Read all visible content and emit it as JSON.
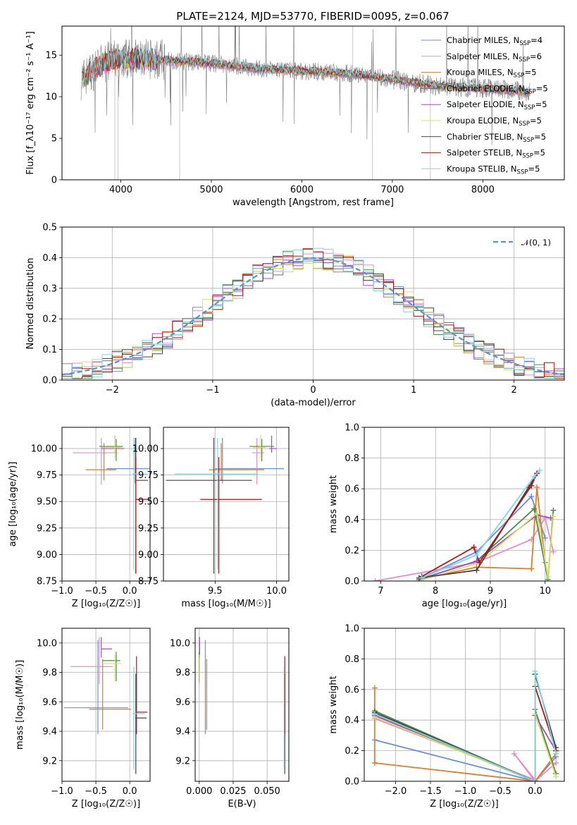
{
  "figure": {
    "title": "PLATE=2124, MJD=53770, FIBERID=0095, z=0.067"
  },
  "colors": {
    "c1": "#6a8fe0",
    "c2": "#e58fc6",
    "c3": "#e07b2a",
    "c4": "#4a8a4a",
    "c5": "#a64bc4",
    "c6": "#d7e06a",
    "c7": "#444444",
    "c8": "#b01515",
    "c9": "#7fd8e0",
    "data": "#808080",
    "normal": "#5b8fd6"
  },
  "chart_data": [
    {
      "id": "spectrum",
      "type": "line",
      "xlabel": "wavelength [Angstrom, rest frame]",
      "ylabel": "Flux [f_λ10⁻¹⁷ erg cm⁻² s⁻¹ A⁻¹]",
      "xlim": [
        3350,
        8900
      ],
      "ylim": [
        0,
        18.5
      ],
      "xticks": [
        4000,
        5000,
        6000,
        7000,
        8000
      ],
      "yticks": [
        0,
        5,
        10,
        15
      ],
      "grid": false,
      "legend_position": "top-right",
      "series": [
        {
          "name": "Chabrier MILES, N_SSP=4",
          "color": "c1"
        },
        {
          "name": "Salpeter MILES, N_SSP=6",
          "color": "c2"
        },
        {
          "name": "Kroupa MILES, N_SSP=5",
          "color": "c3"
        },
        {
          "name": "Chabrier ELODIE, N_SSP=5",
          "color": "c4"
        },
        {
          "name": "Salpeter ELODIE, N_SSP=5",
          "color": "c5"
        },
        {
          "name": "Kroupa ELODIE, N_SSP=5",
          "color": "c6"
        },
        {
          "name": "Chabrier STELIB, N_SSP=5",
          "color": "c7"
        },
        {
          "name": "Salpeter STELIB, N_SSP=5",
          "color": "c8"
        },
        {
          "name": "Kroupa STELIB, N_SSP=5",
          "color": "c9"
        }
      ],
      "continuum": {
        "x": [
          3550,
          3800,
          4000,
          4500,
          5000,
          5500,
          6000,
          6500,
          7000,
          7300,
          7500,
          8000,
          8500
        ],
        "y": [
          12,
          14,
          14.6,
          14.4,
          14.0,
          13.4,
          13.1,
          12.8,
          12.1,
          11.6,
          11.3,
          11.0,
          10.6
        ]
      }
    },
    {
      "id": "residuals",
      "type": "line",
      "xlabel": "(data-model)/error",
      "ylabel": "Normed distribution",
      "xlim": [
        -2.5,
        2.5
      ],
      "ylim": [
        0,
        0.5
      ],
      "xticks": [
        -2,
        -1,
        0,
        1,
        2
      ],
      "yticks": [
        0.0,
        0.1,
        0.2,
        0.3,
        0.4,
        0.5
      ],
      "grid": true,
      "legend": "𝒩(0, 1)",
      "legend_position": "top-right",
      "normal_curve": {
        "mean": 0,
        "sigma": 1
      }
    },
    {
      "id": "age-vs-Z",
      "type": "scatter",
      "xlabel": "Z [log₁₀(Z/Z☉)]",
      "ylabel": "age  [log₁₀(age/yr)]",
      "xlim": [
        -1.0,
        0.3
      ],
      "ylim": [
        8.75,
        10.2
      ],
      "xticks": [
        -1.0,
        -0.5,
        0.0
      ],
      "yticks": [
        8.75,
        9.0,
        9.25,
        9.5,
        9.75,
        10.0
      ],
      "points": [
        {
          "c": "c1",
          "x": 0.08,
          "y": 9.81,
          "xe": [
            0.42,
            0.3
          ],
          "ye": [
            0.14,
            0.29
          ]
        },
        {
          "c": "c2",
          "x": -0.42,
          "y": 9.96,
          "xe": [
            0.42,
            0.24
          ],
          "ye": [
            0.3,
            0.14
          ]
        },
        {
          "c": "c3",
          "x": -0.38,
          "y": 9.8,
          "xe": [
            0.27,
            0.18
          ],
          "ye": [
            0.1,
            0.25
          ]
        },
        {
          "c": "c4",
          "x": -0.2,
          "y": 10.02,
          "xe": [
            0.25,
            0.1
          ],
          "ye": [
            0.14,
            0.07
          ]
        },
        {
          "c": "c5",
          "x": -0.22,
          "y": 10.0,
          "xe": [
            0.2,
            0.14
          ],
          "ye": [
            0.04,
            0.12
          ]
        },
        {
          "c": "c6",
          "x": -0.22,
          "y": 10.01,
          "xe": [
            0.19,
            0.1
          ],
          "ye": [
            0.1,
            0.12
          ]
        },
        {
          "c": "c7",
          "x": 0.09,
          "y": 9.7,
          "xe": [
            0.0,
            0.18
          ],
          "ye": [
            0.88,
            0.4
          ]
        },
        {
          "c": "c8",
          "x": 0.09,
          "y": 9.52,
          "xe": [
            0.0,
            0.2
          ],
          "ye": [
            0.7,
            0.4
          ]
        },
        {
          "c": "c9",
          "x": 0.06,
          "y": 9.76,
          "xe": [
            0.02,
            0.2
          ],
          "ye": [
            0.9,
            0.34
          ]
        }
      ]
    },
    {
      "id": "age-vs-mass",
      "type": "scatter",
      "xlabel": "mass [log₁₀(M/M☉)]",
      "ylabel": "",
      "xlim": [
        9.08,
        10.1
      ],
      "ylim": [
        8.75,
        10.2
      ],
      "xticks": [
        9.5,
        10.0
      ],
      "yticks": [
        8.75,
        9.0,
        9.25,
        9.5,
        9.75,
        10.0
      ],
      "points": [
        {
          "c": "c1",
          "x": 9.56,
          "y": 9.81,
          "xe": [
            0.06,
            0.5
          ],
          "ye": [
            0.14,
            0.29
          ]
        },
        {
          "c": "c2",
          "x": 9.84,
          "y": 9.96,
          "xe": [
            0.04,
            0.06
          ],
          "ye": [
            0.3,
            0.14
          ]
        },
        {
          "c": "c3",
          "x": 9.55,
          "y": 9.8,
          "xe": [
            0.1,
            0.35
          ],
          "ye": [
            0.1,
            0.25
          ]
        },
        {
          "c": "c4",
          "x": 9.88,
          "y": 10.02,
          "xe": [
            0.1,
            0.1
          ],
          "ye": [
            0.14,
            0.07
          ]
        },
        {
          "c": "c5",
          "x": 9.96,
          "y": 10.0,
          "xe": [
            0.02,
            0.04
          ],
          "ye": [
            0.04,
            0.12
          ]
        },
        {
          "c": "c6",
          "x": 9.87,
          "y": 10.01,
          "xe": [
            0.06,
            0.04
          ],
          "ye": [
            0.1,
            0.12
          ]
        },
        {
          "c": "c7",
          "x": 9.49,
          "y": 9.7,
          "xe": [
            0.39,
            0.31
          ],
          "ye": [
            0.88,
            0.4
          ]
        },
        {
          "c": "c8",
          "x": 9.53,
          "y": 9.52,
          "xe": [
            0.15,
            0.35
          ],
          "ye": [
            0.7,
            0.4
          ]
        },
        {
          "c": "c9",
          "x": 9.52,
          "y": 9.76,
          "xe": [
            0.35,
            0.33
          ],
          "ye": [
            0.9,
            0.34
          ]
        }
      ]
    },
    {
      "id": "weight-vs-age",
      "type": "line",
      "xlabel": "age  [log₁₀(age/yr)]",
      "ylabel": "mass weight",
      "xlim": [
        6.7,
        10.35
      ],
      "ylim": [
        0,
        1.0
      ],
      "xticks": [
        7,
        8,
        9,
        10
      ],
      "yticks": [
        0.0,
        0.2,
        0.4,
        0.6,
        0.8,
        1.0
      ],
      "series": [
        {
          "c": "c1",
          "x": [
            7.75,
            8.75,
            9.75,
            10.0
          ],
          "y": [
            0.02,
            0.19,
            0.55,
            0.28
          ]
        },
        {
          "c": "c2",
          "x": [
            6.9,
            8.75,
            9.75,
            10.0,
            10.15
          ],
          "y": [
            0.0,
            0.12,
            0.27,
            0.41,
            0.19
          ]
        },
        {
          "c": "c3",
          "x": [
            7.7,
            8.75,
            9.75,
            9.85,
            10.0
          ],
          "y": [
            0.01,
            0.09,
            0.08,
            0.61,
            0.12
          ]
        },
        {
          "c": "c4",
          "x": [
            7.7,
            8.75,
            9.8,
            10.05,
            10.15
          ],
          "y": [
            0.01,
            0.13,
            0.47,
            0.01,
            0.46
          ]
        },
        {
          "c": "c5",
          "x": [
            7.7,
            8.75,
            9.85,
            10.1
          ],
          "y": [
            0.01,
            0.13,
            0.43,
            0.41
          ]
        },
        {
          "c": "c6",
          "x": [
            7.7,
            8.8,
            9.85,
            10.05,
            10.15
          ],
          "y": [
            0.0,
            0.12,
            0.44,
            0.03,
            0.42
          ]
        },
        {
          "c": "c7",
          "x": [
            7.7,
            8.75,
            9.7,
            9.85
          ],
          "y": [
            0.02,
            0.07,
            0.61,
            0.7
          ]
        },
        {
          "c": "c8",
          "x": [
            7.75,
            8.7,
            8.8,
            9.75,
            9.85
          ],
          "y": [
            0.03,
            0.22,
            0.12,
            0.62,
            0.7
          ]
        },
        {
          "c": "c9",
          "x": [
            7.75,
            8.75,
            9.8,
            9.9
          ],
          "y": [
            0.02,
            0.17,
            0.68,
            0.72
          ]
        }
      ]
    },
    {
      "id": "mass-vs-Z",
      "type": "scatter",
      "xlabel": "Z [log₁₀(Z/Z☉)]",
      "ylabel": "mass [log₁₀(M/M☉)]",
      "xlim": [
        -1.0,
        0.3
      ],
      "ylim": [
        9.06,
        10.1
      ],
      "xticks": [
        -1.0,
        -0.5,
        0.0
      ],
      "yticks": [
        9.2,
        9.4,
        9.6,
        9.8,
        10.0
      ],
      "points": [
        {
          "c": "c1",
          "x": -0.47,
          "y": 9.56,
          "xe": [
            0.5,
            0.45
          ],
          "ye": [
            0.18,
            0.46
          ]
        },
        {
          "c": "c2",
          "x": -0.45,
          "y": 9.84,
          "xe": [
            0.42,
            0.2
          ],
          "ye": [
            0.12,
            0.2
          ]
        },
        {
          "c": "c3",
          "x": -0.4,
          "y": 9.55,
          "xe": [
            0.2,
            0.42
          ],
          "ye": [
            0.14,
            0.34
          ]
        },
        {
          "c": "c4",
          "x": -0.2,
          "y": 9.88,
          "xe": [
            0.2,
            0.06
          ],
          "ye": [
            0.14,
            0.06
          ]
        },
        {
          "c": "c5",
          "x": -0.42,
          "y": 9.96,
          "xe": [
            0.0,
            0.16
          ],
          "ye": [
            0.06,
            0.08
          ]
        },
        {
          "c": "c6",
          "x": -0.22,
          "y": 9.86,
          "xe": [
            0.18,
            0.1
          ],
          "ye": [
            0.12,
            0.06
          ]
        },
        {
          "c": "c7",
          "x": 0.09,
          "y": 9.49,
          "xe": [
            0.01,
            0.16
          ],
          "ye": [
            0.38,
            0.3
          ]
        },
        {
          "c": "c8",
          "x": 0.1,
          "y": 9.53,
          "xe": [
            0.0,
            0.16
          ],
          "ye": [
            0.15,
            0.38
          ]
        },
        {
          "c": "c9",
          "x": 0.06,
          "y": 9.52,
          "xe": [
            0.02,
            0.16
          ],
          "ye": [
            0.38,
            0.32
          ]
        }
      ]
    },
    {
      "id": "mass-vs-EBV",
      "type": "scatter",
      "xlabel": "E(B-V)",
      "ylabel": "",
      "xlim": [
        -0.003,
        0.066
      ],
      "ylim": [
        9.06,
        10.1
      ],
      "xticks": [
        0.0,
        0.025,
        0.05
      ],
      "tick_labels": [
        "0.000",
        "0.025",
        "0.050"
      ],
      "yticks": [
        9.2,
        9.4,
        9.6,
        9.8,
        10.0
      ],
      "points": [
        {
          "c": "c1",
          "x": 0.0045,
          "y": 9.56,
          "xe": [
            0,
            0
          ],
          "ye": [
            0.18,
            0.46
          ]
        },
        {
          "c": "c2",
          "x": 0.0,
          "y": 9.84,
          "xe": [
            0,
            0
          ],
          "ye": [
            0.12,
            0.2
          ]
        },
        {
          "c": "c3",
          "x": 0.0055,
          "y": 9.55,
          "xe": [
            0,
            0
          ],
          "ye": [
            0.14,
            0.34
          ]
        },
        {
          "c": "c4",
          "x": 0.0,
          "y": 9.88,
          "xe": [
            0,
            0
          ],
          "ye": [
            0.14,
            0.06
          ]
        },
        {
          "c": "c5",
          "x": 0.0003,
          "y": 9.96,
          "xe": [
            0,
            0
          ],
          "ye": [
            0.06,
            0.08
          ]
        },
        {
          "c": "c6",
          "x": 0.0002,
          "y": 9.86,
          "xe": [
            0,
            0
          ],
          "ye": [
            0.12,
            0.06
          ]
        },
        {
          "c": "c7",
          "x": 0.063,
          "y": 9.49,
          "xe": [
            0,
            0
          ],
          "ye": [
            0.38,
            0.3
          ]
        },
        {
          "c": "c8",
          "x": 0.063,
          "y": 9.53,
          "xe": [
            0,
            0
          ],
          "ye": [
            0.15,
            0.38
          ]
        },
        {
          "c": "c9",
          "x": 0.0625,
          "y": 9.52,
          "xe": [
            0,
            0
          ],
          "ye": [
            0.38,
            0.32
          ]
        }
      ]
    },
    {
      "id": "weight-vs-Z",
      "type": "line",
      "xlabel": "Z [log₁₀(Z/Z☉)]",
      "ylabel": "mass weight",
      "xlim": [
        -2.45,
        0.42
      ],
      "ylim": [
        0,
        1.0
      ],
      "xticks": [
        -2.0,
        -1.5,
        -1.0,
        -0.5,
        0.0
      ],
      "yticks": [
        0.0,
        0.2,
        0.4,
        0.6,
        0.8,
        1.0
      ],
      "series": [
        {
          "c": "c1",
          "x": [
            -2.3,
            0.0,
            0.3
          ],
          "y": [
            0.27,
            0.0,
            0.16
          ]
        },
        {
          "c": "c2",
          "x": [
            -2.3,
            0.0,
            -0.3,
            0.0,
            0.3
          ],
          "y": [
            0.41,
            0.01,
            0.18,
            0.0,
            0.12
          ]
        },
        {
          "c": "c3",
          "x": [
            -2.3,
            -2.3,
            0.0,
            0.0,
            0.3
          ],
          "y": [
            0.61,
            0.12,
            0.0,
            0.0,
            0.18
          ]
        },
        {
          "c": "c4",
          "x": [
            -2.3,
            0.0,
            0.0,
            0.3
          ],
          "y": [
            0.46,
            0.0,
            0.47,
            0.05
          ]
        },
        {
          "c": "c5",
          "x": [
            -2.3,
            0.0,
            0.0,
            0.3
          ],
          "y": [
            0.43,
            0.0,
            0.43,
            0.2
          ]
        },
        {
          "c": "c6",
          "x": [
            -2.3,
            0.0,
            0.0,
            0.3
          ],
          "y": [
            0.42,
            0.0,
            0.44,
            0.03
          ]
        },
        {
          "c": "c7",
          "x": [
            -2.3,
            0.0,
            0.0,
            0.3
          ],
          "y": [
            0.45,
            0.0,
            0.7,
            0.22
          ]
        },
        {
          "c": "c8",
          "x": [
            -2.3,
            0.0,
            0.0,
            0.3
          ],
          "y": [
            0.44,
            0.0,
            0.62,
            0.2
          ]
        },
        {
          "c": "c9",
          "x": [
            -2.3,
            0.0,
            0.0,
            0.3
          ],
          "y": [
            0.44,
            0.0,
            0.72,
            0.18
          ]
        }
      ]
    }
  ]
}
